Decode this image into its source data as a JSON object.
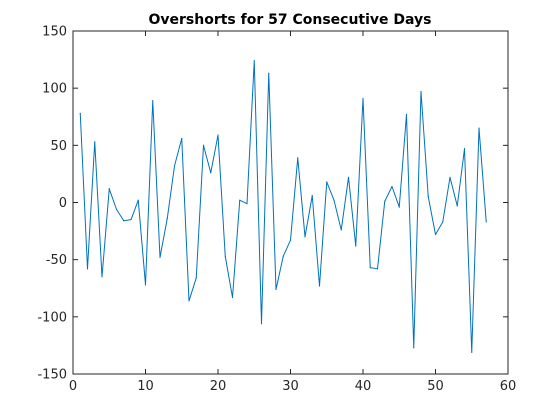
{
  "chart_data": {
    "type": "line",
    "title": "Overshorts for 57 Consecutive Days",
    "xlabel": "",
    "ylabel": "",
    "xlim": [
      0,
      60
    ],
    "ylim": [
      -150,
      150
    ],
    "xticks": [
      0,
      10,
      20,
      30,
      40,
      50,
      60
    ],
    "yticks": [
      -150,
      -100,
      -50,
      0,
      50,
      100,
      150
    ],
    "grid": false,
    "line_color": "#0072bd",
    "series": [
      {
        "x": [
          1,
          2,
          3,
          4,
          5,
          6,
          7,
          8,
          9,
          10,
          11,
          12,
          13,
          14,
          15,
          16,
          17,
          18,
          19,
          20,
          21,
          22,
          23,
          24,
          25,
          26,
          27,
          28,
          29,
          30,
          31,
          32,
          33,
          34,
          35,
          36,
          37,
          38,
          39,
          40,
          41,
          42,
          43,
          44,
          45,
          46,
          47,
          48,
          49,
          50,
          51,
          52,
          53,
          54,
          55,
          56,
          57
        ],
        "y": [
          78,
          -58,
          53,
          -65,
          12,
          -6,
          -16,
          -15,
          2,
          -72,
          89,
          -48,
          -14,
          32,
          56,
          -86,
          -66,
          50,
          26,
          59,
          -47,
          -83,
          2,
          -1,
          124,
          -106,
          113,
          -76,
          -47,
          -33,
          39,
          -30,
          6,
          -73,
          18,
          2,
          -24,
          22,
          -38,
          91,
          -57,
          -58,
          1,
          14,
          -4,
          77,
          -127,
          97,
          5,
          -28,
          -17,
          22,
          -3,
          47,
          -131,
          65,
          -17
        ]
      }
    ]
  }
}
